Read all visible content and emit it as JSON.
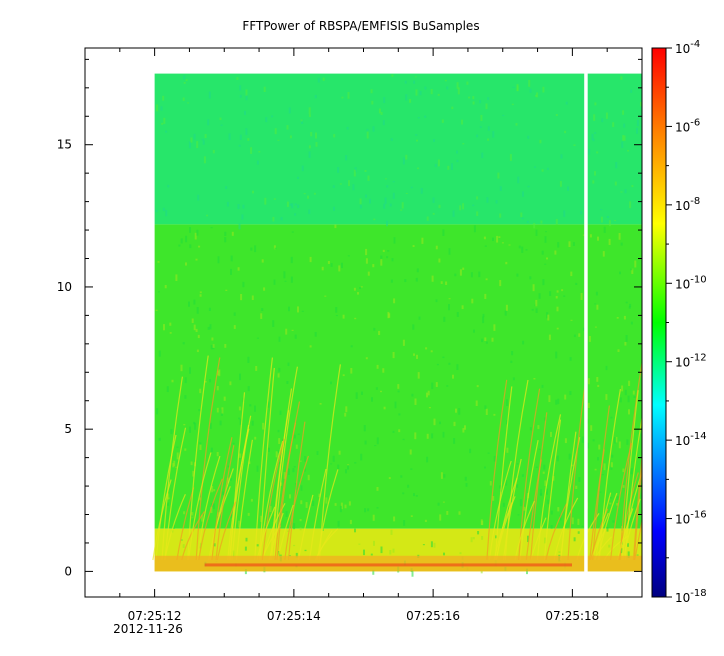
{
  "chart_data": {
    "type": "heatmap",
    "title": "FFTPower of RBSPA/EMFISIS  BuSamples",
    "xlabel": "",
    "ylabel": "",
    "x_date_label": "2012-11-26",
    "x_ticks": [
      "07:25:12",
      "07:25:14",
      "07:25:16",
      "07:25:18"
    ],
    "xlim": [
      "07:25:11.00",
      "07:25:19.00"
    ],
    "y_ticks": [
      "0",
      "5",
      "10",
      "15"
    ],
    "ylim": [
      -0.9,
      18.4
    ],
    "data_extent": {
      "x": [
        "07:25:12.00",
        "07:25:19.00"
      ],
      "y": [
        0,
        17.5
      ]
    },
    "data_gap": [
      "07:25:18.17",
      "07:25:18.22"
    ],
    "colorbar": {
      "scale": "log",
      "range": [
        1e-18,
        0.0001
      ],
      "tick_labels": [
        {
          "base": "10",
          "exp": "-4"
        },
        {
          "base": "10",
          "exp": "-6"
        },
        {
          "base": "10",
          "exp": "-8"
        },
        {
          "base": "10",
          "exp": "-10"
        },
        {
          "base": "10",
          "exp": "-12"
        },
        {
          "base": "10",
          "exp": "-14"
        },
        {
          "base": "10",
          "exp": "-16"
        },
        {
          "base": "10",
          "exp": "-18"
        }
      ],
      "colors": [
        "#00007f",
        "#0000ff",
        "#00ffff",
        "#00ff00",
        "#ffff00",
        "#ff7f00",
        "#ff0000"
      ]
    },
    "bands": [
      {
        "y_range": [
          12.2,
          17.5
        ],
        "level": "1e-12",
        "color": "#27e66a"
      },
      {
        "y_range": [
          1.5,
          12.2
        ],
        "level": "1e-10",
        "color": "#3ee62b"
      },
      {
        "y_range": [
          0,
          1.5
        ],
        "level": "1e-8",
        "color": "#d4e816"
      }
    ],
    "grid": false,
    "legend": "colorbar-right"
  }
}
